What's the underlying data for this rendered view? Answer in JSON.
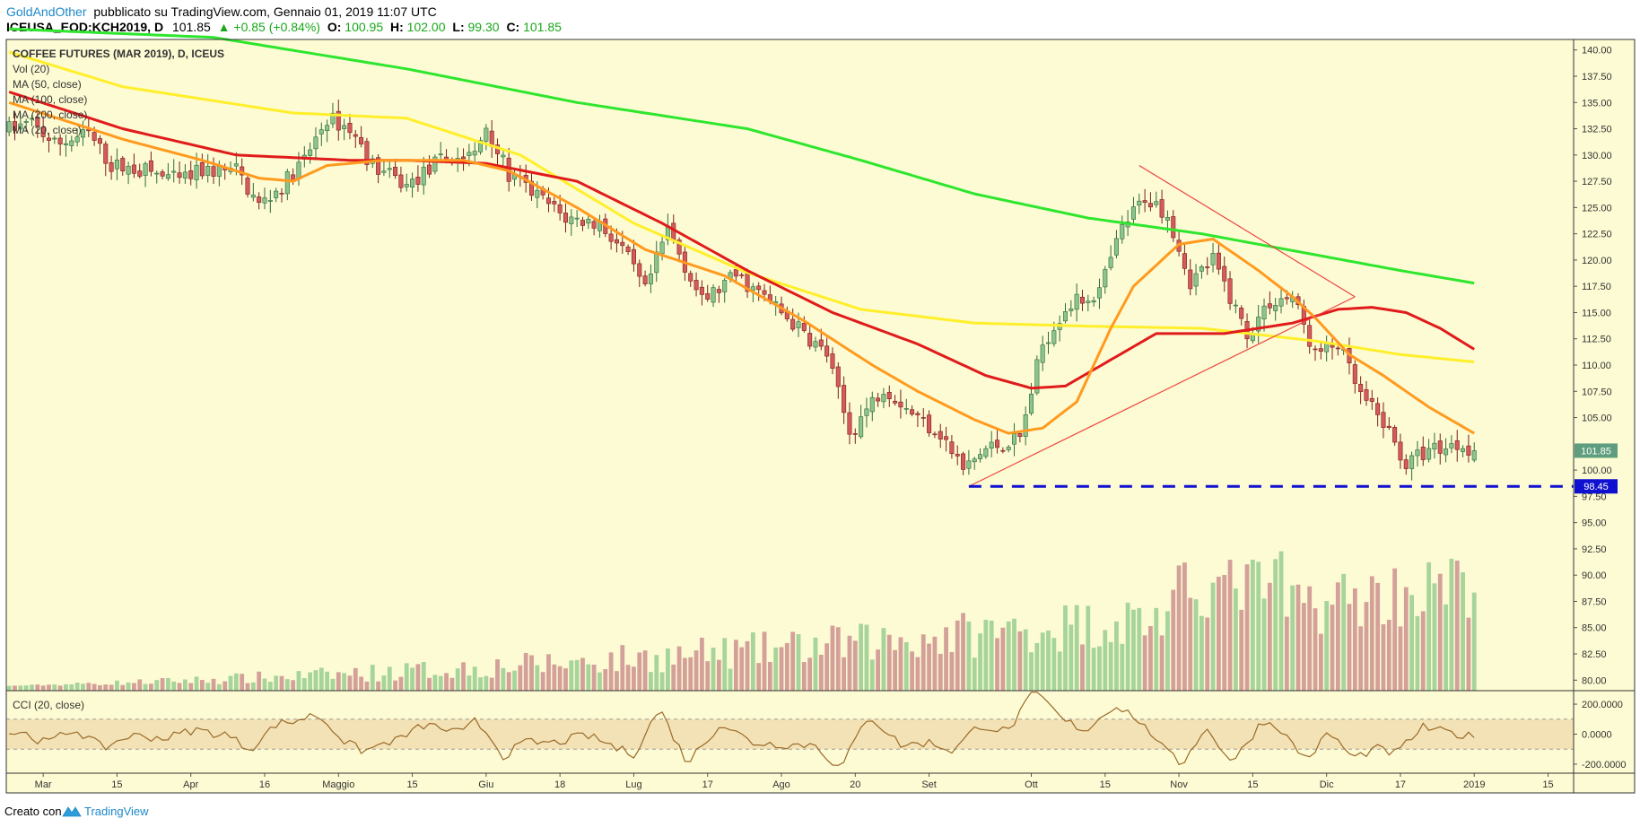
{
  "header": {
    "author": "GoldAndOther",
    "published": "pubblicato su TradingView.com, Gennaio 01, 2019 11:07 UTC",
    "symbol": "ICEUSA_EOD:KCH2019, D",
    "last": "101.85",
    "change": "+0.85 (+0.84%)",
    "o_label": "O:",
    "o": "100.95",
    "h_label": "H:",
    "h": "102.00",
    "l_label": "L:",
    "l": "99.30",
    "c_label": "C:",
    "c": "101.85"
  },
  "legend": [
    {
      "label": "COFFEE FUTURES (MAR 2019), D, ICEUS"
    },
    {
      "label": "Vol (20)"
    },
    {
      "label": "MA (50, close)"
    },
    {
      "label": "MA (100, close)"
    },
    {
      "label": "MA (200, close)"
    },
    {
      "label": "MA (20, close)"
    }
  ],
  "cci_label": "CCI (20, close)",
  "footer": {
    "made_with": "Creato con",
    "brand": "TradingView"
  },
  "colors": {
    "background": "#fdfbd3",
    "up": "#8cc48c",
    "up_border": "#2f6a3f",
    "down": "#d55a5a",
    "down_border": "#7a1f1f",
    "vol_up": "#a6d49a",
    "vol_down": "#d4a09a",
    "ma20": "#ff9a1f",
    "ma50": "#e01b1b",
    "ma100": "#ffef2b",
    "ma200": "#2ee62e",
    "trend": "#ee4444",
    "support": "#1010d0",
    "cci": "#9a6a2a",
    "cci_band": "#f3e2b5",
    "last_price_box": "#5e9e7e",
    "support_box": "#1010d0"
  },
  "price_labels": {
    "last": "101.85",
    "support": "98.45"
  },
  "chart_data": {
    "type": "candlestick",
    "y_axis": {
      "min": 79,
      "max": 141,
      "ticks": [
        140.0,
        137.5,
        135.0,
        132.5,
        130.0,
        127.5,
        125.0,
        122.5,
        120.0,
        117.5,
        115.0,
        112.5,
        110.0,
        107.5,
        105.0,
        100.0,
        97.5,
        95.0,
        92.5,
        90.0,
        87.5,
        85.0,
        82.5,
        80.0
      ]
    },
    "x_axis": {
      "labels": [
        "Mar",
        "15",
        "Apr",
        "16",
        "Maggio",
        "15",
        "Giu",
        "18",
        "Lug",
        "17",
        "Ago",
        "20",
        "Set",
        "Ott",
        "15",
        "Nov",
        "15",
        "Dic",
        "17",
        "2019",
        "15"
      ],
      "label_bars": [
        6,
        19,
        32,
        45,
        58,
        71,
        84,
        97,
        110,
        123,
        136,
        149,
        162,
        180,
        193,
        206,
        219,
        232,
        245,
        258,
        271
      ],
      "bar_count": 276
    },
    "last_price": 101.85,
    "support_level": 98.45,
    "support_start_bar": 169,
    "trendlines": [
      {
        "from": [
          169,
          98.45
        ],
        "to": [
          237,
          116.5
        ]
      },
      {
        "from": [
          199,
          129
        ],
        "to": [
          237,
          116.5
        ]
      }
    ],
    "price_path": [
      [
        0,
        132.5
      ],
      [
        4,
        133
      ],
      [
        8,
        131
      ],
      [
        14,
        132
      ],
      [
        18,
        129
      ],
      [
        24,
        128.5
      ],
      [
        30,
        127.5
      ],
      [
        34,
        128.5
      ],
      [
        40,
        128.5
      ],
      [
        44,
        125.2
      ],
      [
        48,
        127
      ],
      [
        52,
        129.5
      ],
      [
        56,
        133.5
      ],
      [
        60,
        132.5
      ],
      [
        64,
        129
      ],
      [
        70,
        127
      ],
      [
        76,
        129.5
      ],
      [
        82,
        130
      ],
      [
        84,
        132.8
      ],
      [
        88,
        128
      ],
      [
        92,
        126.5
      ],
      [
        98,
        124
      ],
      [
        104,
        123.5
      ],
      [
        108,
        121
      ],
      [
        112,
        117
      ],
      [
        116,
        123
      ],
      [
        122,
        116
      ],
      [
        128,
        118.5
      ],
      [
        134,
        116
      ],
      [
        138,
        114
      ],
      [
        144,
        111
      ],
      [
        148,
        103.5
      ],
      [
        154,
        108
      ],
      [
        160,
        105
      ],
      [
        164,
        103.5
      ],
      [
        168,
        100
      ],
      [
        172,
        102
      ],
      [
        178,
        103
      ],
      [
        182,
        112
      ],
      [
        186,
        115.5
      ],
      [
        192,
        117
      ],
      [
        196,
        123
      ],
      [
        200,
        126
      ],
      [
        204,
        124.5
      ],
      [
        208,
        118
      ],
      [
        212,
        120
      ],
      [
        218,
        113
      ],
      [
        222,
        116
      ],
      [
        226,
        116.5
      ],
      [
        230,
        111
      ],
      [
        234,
        112
      ],
      [
        238,
        107
      ],
      [
        242,
        104.5
      ],
      [
        246,
        100.5
      ],
      [
        250,
        102
      ],
      [
        256,
        102.5
      ],
      [
        258,
        101.85
      ]
    ],
    "ma_paths": {
      "ma200": [
        [
          0,
          142
        ],
        [
          36,
          141.2
        ],
        [
          70,
          138.2
        ],
        [
          100,
          135
        ],
        [
          130,
          132.5
        ],
        [
          150,
          129.5
        ],
        [
          170,
          126.3
        ],
        [
          190,
          124
        ],
        [
          210,
          122.5
        ],
        [
          230,
          120.5
        ],
        [
          245,
          119
        ],
        [
          258,
          117.8
        ]
      ],
      "ma100": [
        [
          0,
          139.8
        ],
        [
          20,
          136.5
        ],
        [
          50,
          134
        ],
        [
          70,
          133.5
        ],
        [
          90,
          130
        ],
        [
          110,
          123.5
        ],
        [
          130,
          118.8
        ],
        [
          150,
          115.3
        ],
        [
          170,
          114
        ],
        [
          190,
          113.7
        ],
        [
          210,
          113.5
        ],
        [
          230,
          112.3
        ],
        [
          245,
          111
        ],
        [
          258,
          110.3
        ]
      ],
      "ma50": [
        [
          0,
          136
        ],
        [
          20,
          132.5
        ],
        [
          40,
          130
        ],
        [
          60,
          129.5
        ],
        [
          70,
          129.5
        ],
        [
          84,
          129.2
        ],
        [
          100,
          127.5
        ],
        [
          115,
          123.5
        ],
        [
          130,
          119
        ],
        [
          145,
          115
        ],
        [
          160,
          112
        ],
        [
          172,
          109
        ],
        [
          180,
          107.8
        ],
        [
          186,
          108
        ],
        [
          194,
          110.5
        ],
        [
          202,
          113
        ],
        [
          214,
          113
        ],
        [
          226,
          114
        ],
        [
          234,
          115.3
        ],
        [
          240,
          115.5
        ],
        [
          246,
          115
        ],
        [
          252,
          113.5
        ],
        [
          258,
          111.5
        ]
      ],
      "ma20": [
        [
          0,
          135
        ],
        [
          20,
          131.5
        ],
        [
          34,
          129.5
        ],
        [
          44,
          127.8
        ],
        [
          50,
          127.5
        ],
        [
          56,
          129
        ],
        [
          66,
          129.5
        ],
        [
          80,
          129.5
        ],
        [
          88,
          128.5
        ],
        [
          100,
          125
        ],
        [
          112,
          121
        ],
        [
          126,
          118.5
        ],
        [
          140,
          114.2
        ],
        [
          152,
          110
        ],
        [
          160,
          107.5
        ],
        [
          170,
          104.8
        ],
        [
          176,
          103.5
        ],
        [
          182,
          104
        ],
        [
          188,
          106.5
        ],
        [
          194,
          113.5
        ],
        [
          198,
          117.5
        ],
        [
          206,
          121.5
        ],
        [
          212,
          122
        ],
        [
          220,
          119
        ],
        [
          226,
          116.5
        ],
        [
          230,
          114.5
        ],
        [
          236,
          111
        ],
        [
          242,
          109
        ],
        [
          250,
          106
        ],
        [
          258,
          103.5
        ]
      ]
    },
    "cci": {
      "range": [
        -260,
        290
      ],
      "levels": [
        200,
        0,
        -200
      ],
      "band": [
        -100,
        100
      ],
      "tick_labels": [
        "200.0000",
        "0.0000",
        "-200.0000"
      ]
    },
    "volume_scale": {
      "max": 100
    }
  }
}
